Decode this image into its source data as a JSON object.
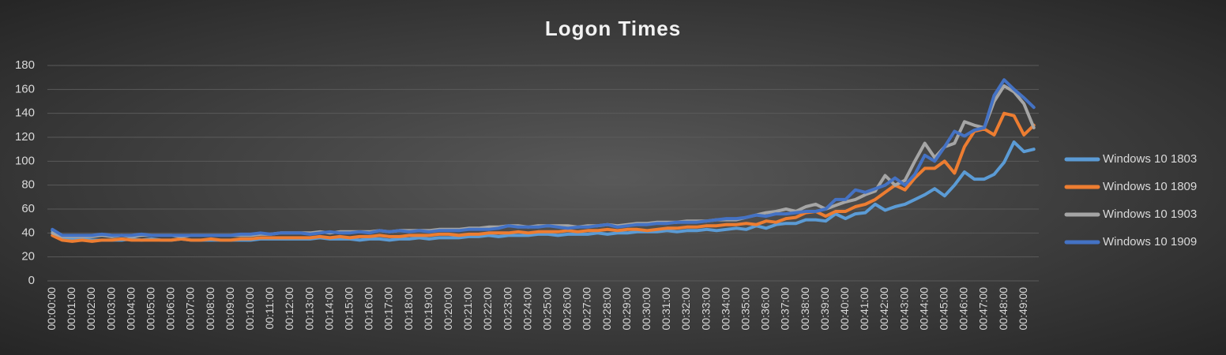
{
  "chart_data": {
    "type": "line",
    "title": "Logon Times",
    "categories": [
      "00:00:00",
      null,
      "00:01:00",
      null,
      "00:02:00",
      null,
      "00:03:00",
      null,
      "00:04:00",
      null,
      "00:05:00",
      null,
      "00:06:00",
      null,
      "00:07:00",
      null,
      "00:08:00",
      null,
      "00:09:00",
      null,
      "00:10:00",
      null,
      "00:11:00",
      null,
      "00:12:00",
      null,
      "00:13:00",
      null,
      "00:14:00",
      null,
      "00:15:00",
      null,
      "00:16:00",
      null,
      "00:17:00",
      null,
      "00:18:00",
      null,
      "00:19:00",
      null,
      "00:20:00",
      null,
      "00:21:00",
      null,
      "00:22:00",
      null,
      "00:23:00",
      null,
      "00:24:00",
      null,
      "00:25:00",
      null,
      "00:26:00",
      null,
      "00:27:00",
      null,
      "00:28:00",
      null,
      "00:29:00",
      null,
      "00:30:00",
      null,
      "00:31:00",
      null,
      "00:32:00",
      null,
      "00:33:00",
      null,
      "00:34:00",
      null,
      "00:35:00",
      null,
      "00:36:00",
      null,
      "00:37:00",
      null,
      "00:38:00",
      null,
      "00:39:00",
      null,
      "00:40:00",
      null,
      "00:41:00",
      null,
      "00:42:00",
      null,
      "00:43:00",
      null,
      "00:44:00",
      null,
      "00:45:00",
      null,
      "00:46:00",
      null,
      "00:47:00",
      null,
      "00:48:00",
      null,
      "00:49:00",
      null
    ],
    "series": [
      {
        "name": "Windows 10 1803",
        "color": "#5b9bd5",
        "values": [
          42,
          36,
          35,
          35,
          34,
          34,
          34,
          34,
          35,
          34,
          35,
          34,
          34,
          35,
          34,
          34,
          34,
          34,
          34,
          34,
          34,
          35,
          35,
          35,
          35,
          35,
          35,
          36,
          35,
          35,
          35,
          34,
          35,
          35,
          34,
          35,
          35,
          36,
          35,
          36,
          36,
          36,
          37,
          37,
          38,
          37,
          38,
          38,
          38,
          39,
          39,
          38,
          39,
          39,
          39,
          40,
          39,
          40,
          40,
          41,
          41,
          41,
          42,
          41,
          42,
          42,
          43,
          42,
          43,
          44,
          43,
          46,
          44,
          47,
          48,
          48,
          51,
          51,
          50,
          56,
          52,
          56,
          57,
          64,
          59,
          62,
          64,
          68,
          72,
          77,
          71,
          80,
          91,
          85,
          85,
          89,
          99,
          116,
          108,
          110
        ]
      },
      {
        "name": "Windows 10 1809",
        "color": "#ed7d31",
        "values": [
          38,
          34,
          33,
          34,
          33,
          34,
          34,
          35,
          34,
          34,
          34,
          34,
          34,
          35,
          34,
          34,
          35,
          34,
          34,
          35,
          35,
          36,
          36,
          36,
          36,
          36,
          36,
          37,
          36,
          37,
          36,
          37,
          37,
          38,
          37,
          37,
          38,
          38,
          38,
          39,
          39,
          38,
          39,
          39,
          40,
          40,
          40,
          41,
          40,
          41,
          41,
          41,
          42,
          41,
          42,
          42,
          43,
          42,
          43,
          43,
          42,
          43,
          44,
          44,
          45,
          45,
          46,
          46,
          47,
          47,
          48,
          47,
          50,
          49,
          52,
          53,
          57,
          58,
          54,
          58,
          58,
          62,
          64,
          68,
          74,
          80,
          76,
          86,
          94,
          94,
          100,
          90,
          112,
          125,
          127,
          122,
          140,
          138,
          122,
          130
        ]
      },
      {
        "name": "Windows 10 1903",
        "color": "#a5a5a5",
        "values": [
          40,
          37,
          37,
          37,
          37,
          38,
          37,
          38,
          37,
          38,
          38,
          38,
          38,
          37,
          38,
          38,
          38,
          38,
          38,
          38,
          38,
          39,
          39,
          40,
          40,
          40,
          40,
          41,
          40,
          41,
          41,
          41,
          41,
          42,
          41,
          42,
          42,
          42,
          42,
          43,
          43,
          43,
          44,
          44,
          45,
          45,
          46,
          46,
          45,
          46,
          46,
          46,
          46,
          45,
          46,
          46,
          47,
          46,
          47,
          48,
          48,
          49,
          49,
          49,
          50,
          50,
          50,
          51,
          51,
          51,
          53,
          55,
          57,
          58,
          60,
          58,
          62,
          64,
          60,
          63,
          66,
          68,
          72,
          75,
          88,
          80,
          84,
          100,
          115,
          103,
          112,
          115,
          133,
          130,
          128,
          150,
          163,
          158,
          148,
          128
        ]
      },
      {
        "name": "Windows 10 1909",
        "color": "#4472c4",
        "values": [
          43,
          38,
          38,
          38,
          38,
          39,
          38,
          38,
          38,
          39,
          38,
          38,
          38,
          38,
          38,
          38,
          38,
          38,
          38,
          39,
          39,
          40,
          39,
          40,
          40,
          40,
          39,
          40,
          41,
          40,
          40,
          41,
          40,
          42,
          41,
          42,
          41,
          42,
          41,
          42,
          42,
          42,
          43,
          43,
          43,
          44,
          46,
          45,
          45,
          45,
          46,
          45,
          44,
          45,
          45,
          46,
          47,
          45,
          46,
          47,
          47,
          48,
          48,
          49,
          49,
          49,
          50,
          51,
          52,
          52,
          53,
          55,
          54,
          56,
          56,
          57,
          58,
          58,
          60,
          68,
          68,
          76,
          74,
          77,
          80,
          86,
          80,
          89,
          105,
          100,
          112,
          125,
          121,
          126,
          128,
          155,
          168,
          160,
          153,
          145
        ]
      }
    ],
    "ylim": [
      0,
      180
    ],
    "yticks": [
      0,
      20,
      40,
      60,
      80,
      100,
      120,
      140,
      160,
      180
    ],
    "grid": true,
    "legend": "right"
  }
}
